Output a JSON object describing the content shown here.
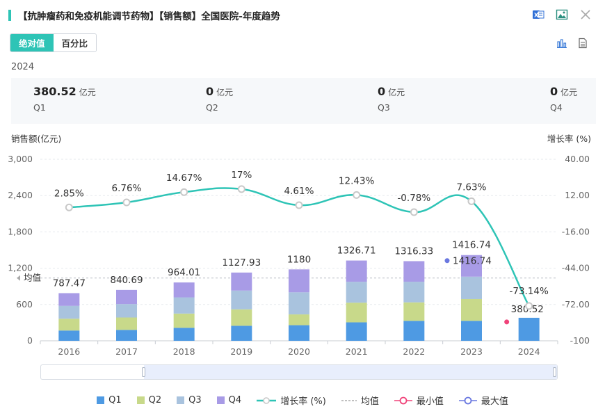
{
  "header": {
    "title": "【抗肿瘤药和免疫机能调节药物】【销售额】全国医院-年度趋势"
  },
  "toggle": {
    "absolute_label": "绝对值",
    "percent_label": "百分比"
  },
  "icons": [
    "excel-icon",
    "image-icon",
    "close-icon",
    "bar-chart-icon",
    "document-icon"
  ],
  "summary": {
    "year": "2024",
    "unit": "亿元",
    "quarters": [
      {
        "name": "Q1",
        "value": "380.52"
      },
      {
        "name": "Q2",
        "value": "0"
      },
      {
        "name": "Q3",
        "value": "0"
      },
      {
        "name": "Q4",
        "value": "0"
      }
    ]
  },
  "colors": {
    "Q1": "#4e9ae3",
    "Q2": "#c8d98a",
    "Q3": "#a9c3de",
    "Q4": "#a89be6",
    "line": "#2ec4b6",
    "min": "#f0437a",
    "max": "#6a78e0",
    "accent": "#2ec4b6"
  },
  "chart_data": {
    "type": "bar",
    "categories": [
      "2016",
      "2017",
      "2018",
      "2019",
      "2020",
      "2021",
      "2022",
      "2023",
      "2024"
    ],
    "ylabel": "销售额(亿元)",
    "y2label": "增长率 (%)",
    "ylim": [
      0,
      3000
    ],
    "y_ticks": [
      "0",
      "600",
      "1,200",
      "1,800",
      "2,400",
      "3,000"
    ],
    "y2lim": [
      -100,
      40
    ],
    "y2_ticks": [
      "-100",
      "-72.00",
      "-44.00",
      "-16.00",
      "12.00",
      "40.00"
    ],
    "series": [
      {
        "name": "Q1",
        "values": [
          170,
          180,
          215,
          248,
          258,
          305,
          330,
          330,
          380.52
        ]
      },
      {
        "name": "Q2",
        "values": [
          195,
          205,
          235,
          272,
          178,
          325,
          305,
          360,
          0
        ]
      },
      {
        "name": "Q3",
        "values": [
          212,
          222,
          268,
          310,
          365,
          345,
          341,
          370,
          0
        ]
      },
      {
        "name": "Q4",
        "values": [
          210.47,
          233.69,
          246.01,
          297.93,
          379,
          351.71,
          340.33,
          356.74,
          0
        ]
      }
    ],
    "totals": [
      "787.47",
      "840.69",
      "964.01",
      "1127.93",
      "1180",
      "1326.71",
      "1316.33",
      "1416.74",
      "380.52"
    ],
    "growth": {
      "name": "增长率 (%)",
      "values": [
        2.85,
        6.76,
        14.67,
        17,
        4.61,
        12.43,
        -0.78,
        7.63,
        -73.14
      ],
      "labels": [
        "2.85%",
        "6.76%",
        "14.67%",
        "17%",
        "4.61%",
        "12.43%",
        "-0.78%",
        "7.63%",
        "-73.14%"
      ]
    },
    "average": {
      "label": "均值",
      "value": 1038
    },
    "min_marker": {
      "category": "2024",
      "value": 380.52
    },
    "max_marker": {
      "category": "2023",
      "value": 1416.74
    },
    "legend": [
      "Q1",
      "Q2",
      "Q3",
      "Q4",
      "增长率 (%)",
      "均值",
      "最小值",
      "最大值"
    ],
    "legend_position": "bottom"
  }
}
